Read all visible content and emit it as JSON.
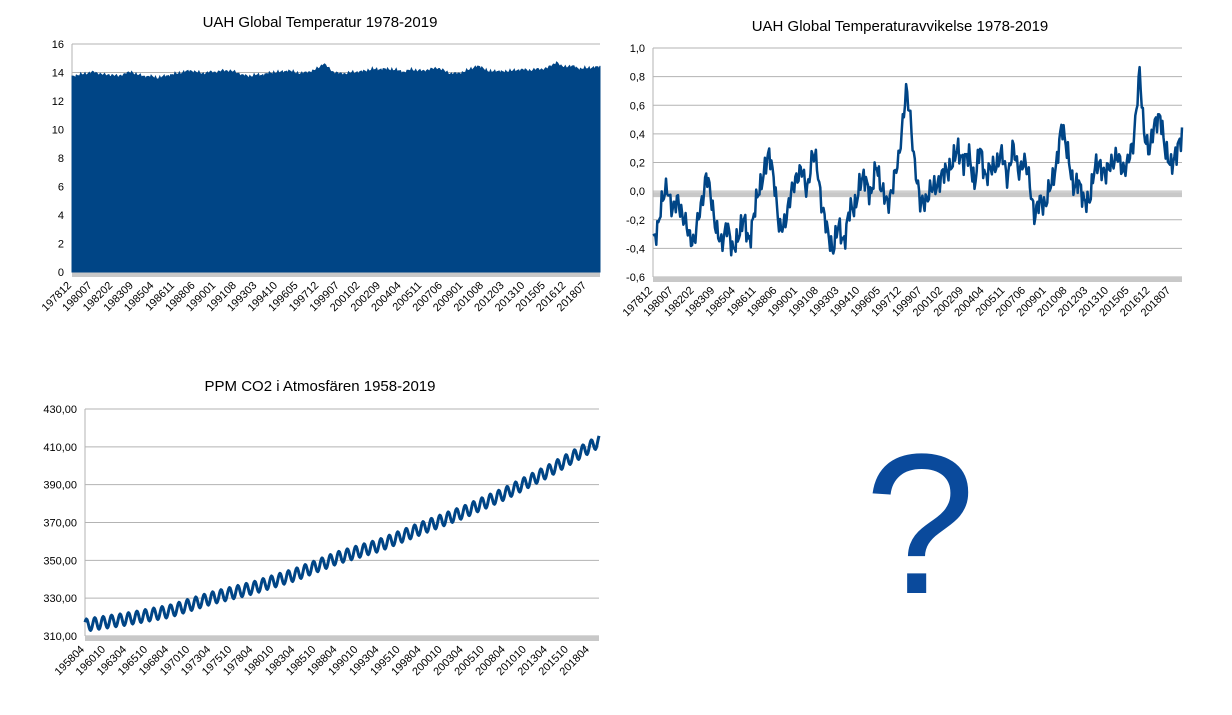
{
  "chart_data": [
    {
      "id": "uah-temp",
      "type": "area",
      "title": "UAH Global Temperatur 1978-2019",
      "ylim": [
        0,
        16
      ],
      "yticks": [
        0,
        2,
        4,
        6,
        8,
        10,
        12,
        14,
        16
      ],
      "ytick_decimals": 0,
      "x_tick_labels": [
        "197812",
        "198007",
        "198202",
        "198309",
        "198504",
        "198611",
        "198806",
        "199001",
        "199108",
        "199303",
        "199410",
        "199605",
        "199712",
        "199907",
        "200102",
        "200209",
        "200404",
        "200511",
        "200706",
        "200901",
        "201008",
        "201203",
        "201310",
        "201505",
        "201612",
        "201807"
      ],
      "x_tick_step_months": 19,
      "n_points": 488,
      "color": "#004586",
      "series": [
        {
          "x": [
            "1978-12",
            "1979-06",
            "1980-01",
            "1980-07",
            "1981-01",
            "1981-07",
            "1982-01",
            "1982-07",
            "1983-01",
            "1983-07",
            "1984-01",
            "1984-07",
            "1985-01",
            "1985-07",
            "1986-01",
            "1986-07",
            "1987-01",
            "1987-07",
            "1988-01",
            "1988-07",
            "1989-01",
            "1989-07",
            "1990-01",
            "1990-07",
            "1991-01",
            "1991-07",
            "1992-01",
            "1992-07",
            "1993-01",
            "1993-07",
            "1994-01",
            "1994-07",
            "1995-01",
            "1995-07",
            "1996-01",
            "1996-07",
            "1997-01",
            "1997-07",
            "1998-01",
            "1998-04",
            "1998-07",
            "1999-01",
            "1999-07",
            "2000-01",
            "2000-07",
            "2001-01",
            "2001-07",
            "2002-01",
            "2002-07",
            "2003-01",
            "2003-07",
            "2004-01",
            "2004-07",
            "2005-01",
            "2005-07",
            "2006-01",
            "2006-07",
            "2007-01",
            "2007-07",
            "2008-01",
            "2008-07",
            "2009-01",
            "2009-07",
            "2010-01",
            "2010-07",
            "2011-01",
            "2011-07",
            "2012-01",
            "2012-07",
            "2013-01",
            "2013-07",
            "2014-01",
            "2014-07",
            "2015-01",
            "2015-07",
            "2016-01",
            "2016-03",
            "2016-07",
            "2017-01",
            "2017-07",
            "2018-01",
            "2018-07",
            "2019-01",
            "2019-07"
          ],
          "y": [
            13.7,
            13.8,
            13.9,
            14.0,
            13.9,
            13.8,
            13.8,
            13.7,
            13.9,
            14.0,
            13.8,
            13.7,
            13.7,
            13.6,
            13.7,
            13.8,
            13.9,
            14.0,
            14.1,
            14.0,
            13.9,
            14.0,
            14.0,
            14.1,
            14.1,
            14.0,
            13.8,
            13.7,
            13.8,
            13.8,
            13.9,
            14.0,
            14.0,
            14.1,
            14.0,
            13.9,
            14.0,
            14.1,
            14.4,
            14.6,
            14.4,
            14.0,
            13.9,
            13.9,
            14.0,
            14.0,
            14.1,
            14.2,
            14.2,
            14.2,
            14.2,
            14.1,
            14.0,
            14.2,
            14.1,
            14.1,
            14.2,
            14.3,
            14.1,
            13.9,
            13.9,
            14.0,
            14.2,
            14.4,
            14.3,
            14.0,
            14.1,
            14.0,
            14.1,
            14.1,
            14.2,
            14.1,
            14.2,
            14.2,
            14.3,
            14.6,
            14.7,
            14.4,
            14.4,
            14.4,
            14.2,
            14.3,
            14.3,
            14.4
          ]
        }
      ]
    },
    {
      "id": "uah-anom",
      "type": "line",
      "title": "UAH Global Temperaturavvikelse 1978-2019",
      "ylim": [
        -0.6,
        1
      ],
      "yticks": [
        -0.6,
        -0.4,
        -0.2,
        0,
        0.2,
        0.4,
        0.6,
        0.8,
        1
      ],
      "ytick_decimals": 1,
      "x_tick_labels": [
        "197812",
        "198007",
        "198202",
        "198309",
        "198504",
        "198611",
        "198806",
        "199001",
        "199108",
        "199303",
        "199410",
        "199605",
        "199712",
        "199907",
        "200102",
        "200209",
        "200404",
        "200511",
        "200706",
        "200901",
        "201008",
        "201203",
        "201310",
        "201505",
        "201612",
        "201807"
      ],
      "x_tick_step_months": 19,
      "n_points": 488,
      "color": "#004586",
      "series": [
        {
          "x": [
            "1978-12",
            "1979-04",
            "1979-08",
            "1980-01",
            "1980-06",
            "1980-11",
            "1981-04",
            "1981-09",
            "1982-02",
            "1982-08",
            "1983-01",
            "1983-05",
            "1983-10",
            "1984-03",
            "1984-08",
            "1985-01",
            "1985-06",
            "1985-11",
            "1986-04",
            "1986-09",
            "1987-01",
            "1987-06",
            "1987-11",
            "1988-03",
            "1988-08",
            "1989-01",
            "1989-06",
            "1989-11",
            "1990-04",
            "1990-09",
            "1991-02",
            "1991-06",
            "1991-11",
            "1992-04",
            "1992-09",
            "1993-02",
            "1993-07",
            "1993-12",
            "1994-05",
            "1994-10",
            "1995-03",
            "1995-08",
            "1996-01",
            "1996-06",
            "1996-11",
            "1997-04",
            "1997-09",
            "1998-01",
            "1998-04",
            "1998-08",
            "1998-12",
            "1999-05",
            "1999-10",
            "2000-03",
            "2000-08",
            "2001-01",
            "2001-06",
            "2001-11",
            "2002-04",
            "2002-09",
            "2003-02",
            "2003-07",
            "2003-12",
            "2004-05",
            "2004-10",
            "2005-03",
            "2005-08",
            "2006-01",
            "2006-06",
            "2006-11",
            "2007-04",
            "2007-09",
            "2008-02",
            "2008-07",
            "2008-12",
            "2009-05",
            "2009-10",
            "2010-03",
            "2010-08",
            "2011-01",
            "2011-06",
            "2011-11",
            "2012-04",
            "2012-09",
            "2013-02",
            "2013-07",
            "2013-12",
            "2014-05",
            "2014-10",
            "2015-03",
            "2015-08",
            "2016-02",
            "2016-06",
            "2016-11",
            "2017-04",
            "2017-09",
            "2018-02",
            "2018-07",
            "2018-12",
            "2019-05"
          ],
          "y": [
            -0.35,
            -0.25,
            -0.1,
            0.05,
            -0.15,
            -0.05,
            -0.2,
            -0.3,
            -0.35,
            -0.1,
            0.12,
            -0.05,
            -0.25,
            -0.4,
            -0.2,
            -0.45,
            -0.3,
            -0.2,
            -0.35,
            -0.15,
            0.0,
            0.15,
            0.25,
            0.1,
            -0.3,
            -0.2,
            -0.05,
            0.1,
            0.15,
            0.0,
            0.25,
            0.2,
            -0.1,
            -0.3,
            -0.4,
            -0.25,
            -0.35,
            -0.15,
            -0.1,
            0.05,
            0.1,
            -0.05,
            0.2,
            0.0,
            -0.1,
            0.05,
            0.2,
            0.5,
            0.7,
            0.5,
            0.2,
            -0.1,
            -0.05,
            0.0,
            0.05,
            0.1,
            0.15,
            0.2,
            0.3,
            0.2,
            0.25,
            0.05,
            0.3,
            0.1,
            0.15,
            0.2,
            0.25,
            0.1,
            0.3,
            0.15,
            0.2,
            0.1,
            -0.2,
            -0.05,
            -0.1,
            0.05,
            0.2,
            0.45,
            0.3,
            0.0,
            0.1,
            -0.1,
            -0.05,
            0.15,
            0.2,
            0.1,
            0.2,
            0.25,
            0.15,
            0.2,
            0.3,
            0.85,
            0.4,
            0.3,
            0.45,
            0.55,
            0.25,
            0.2,
            0.25,
            0.4
          ]
        }
      ]
    },
    {
      "id": "co2",
      "type": "line",
      "title": "PPM CO2 i Atmosfären 1958-2019",
      "ylim": [
        310,
        430
      ],
      "yticks": [
        310,
        330,
        350,
        370,
        390,
        410,
        430
      ],
      "ytick_decimals": 2,
      "x_tick_labels": [
        "195804",
        "196010",
        "196304",
        "196510",
        "196804",
        "197010",
        "197304",
        "197510",
        "197804",
        "198010",
        "198304",
        "198510",
        "198804",
        "199010",
        "199304",
        "199510",
        "199804",
        "200010",
        "200304",
        "200510",
        "200804",
        "201010",
        "201304",
        "201510",
        "201804"
      ],
      "x_tick_step_months": 30,
      "n_points": 734,
      "color": "#004586",
      "seasonal_amplitude_ppm": 3.2,
      "series": [
        {
          "x": [
            "1958-04",
            "1963-04",
            "1968-04",
            "1973-04",
            "1978-04",
            "1983-04",
            "1988-04",
            "1993-04",
            "1998-04",
            "2003-04",
            "2008-04",
            "2013-04",
            "2018-04",
            "2019-05"
          ],
          "y": [
            315.7,
            319.0,
            323.0,
            330.0,
            335.5,
            342.5,
            351.3,
            358.0,
            367.0,
            375.5,
            385.5,
            397.0,
            410.0,
            413.0
          ]
        }
      ]
    }
  ],
  "placeholder": {
    "symbol": "?",
    "color": "#0a4a9c"
  }
}
